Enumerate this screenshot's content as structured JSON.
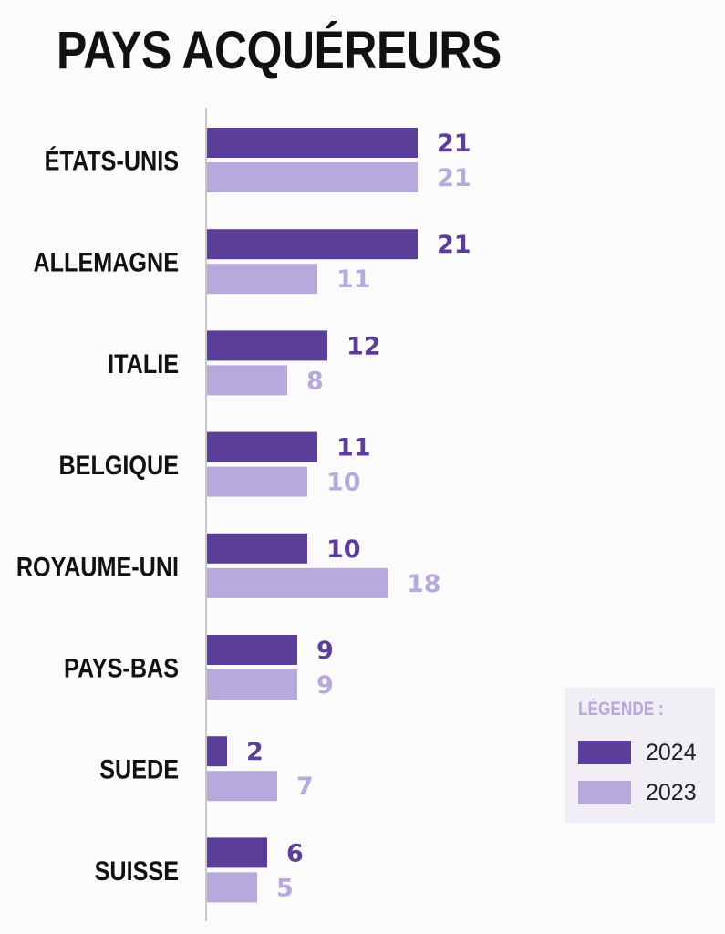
{
  "title": "PAYS ACQUÉREURS",
  "colors": {
    "series_2024": "#5a3e98",
    "series_2023": "#b7a9dc",
    "axis": "#c8c8c8"
  },
  "legend": {
    "title": "LÉGENDE :",
    "items": [
      {
        "label": "2024",
        "color": "#5a3e98"
      },
      {
        "label": "2023",
        "color": "#b7a9dc"
      }
    ]
  },
  "chart_data": {
    "type": "bar",
    "orientation": "horizontal",
    "title": "PAYS ACQUÉREURS",
    "categories": [
      "ÉTATS-UNIS",
      "ALLEMAGNE",
      "ITALIE",
      "BELGIQUE",
      "ROYAUME-UNI",
      "PAYS-BAS",
      "SUEDE",
      "SUISSE"
    ],
    "series": [
      {
        "name": "2024",
        "color": "#5a3e98",
        "values": [
          21,
          21,
          12,
          11,
          10,
          9,
          2,
          6
        ]
      },
      {
        "name": "2023",
        "color": "#b7a9dc",
        "values": [
          21,
          11,
          8,
          10,
          18,
          9,
          7,
          5
        ]
      }
    ],
    "data_labels": true,
    "legend_position": "bottom-right",
    "grid": false
  }
}
